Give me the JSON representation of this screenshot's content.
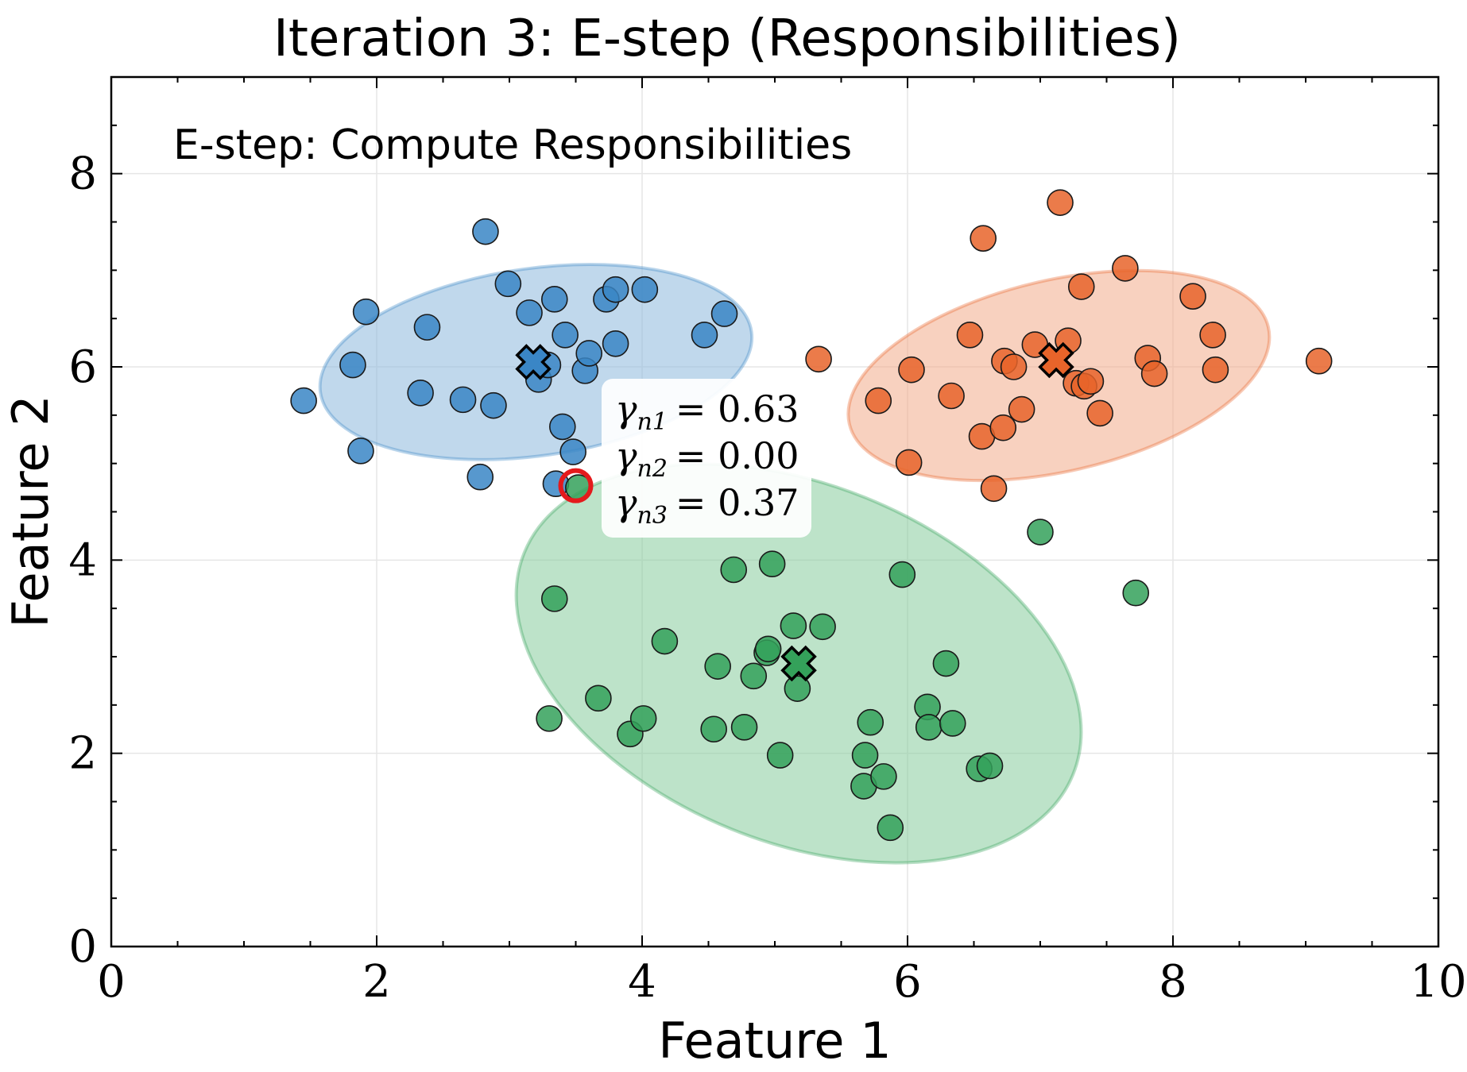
{
  "chart_data": {
    "type": "scatter",
    "title": "Iteration 3: E-step (Responsibilities)",
    "xlabel": "Feature 1",
    "ylabel": "Feature 2",
    "xlim": [
      0,
      10
    ],
    "ylim": [
      0,
      9
    ],
    "xticks": [
      0,
      2,
      4,
      6,
      8,
      10
    ],
    "yticks": [
      0,
      2,
      4,
      6,
      8
    ],
    "xtick_labels": [
      "0",
      "2",
      "4",
      "6",
      "8",
      "10"
    ],
    "ytick_labels": [
      "0",
      "2",
      "4",
      "6",
      "8"
    ],
    "grid": true,
    "annotation": "E-step: Compute Responsibilities",
    "highlighted_point": {
      "x": 3.5,
      "y": 4.77
    },
    "responsibility_labels": [
      {
        "symbol": "γ",
        "sub": "n1",
        "text": "= 0.63"
      },
      {
        "symbol": "γ",
        "sub": "n2",
        "text": "= 0.00"
      },
      {
        "symbol": "γ",
        "sub": "n3",
        "text": "= 0.37"
      }
    ],
    "clusters": [
      {
        "name": "Cluster 1",
        "color": "#3a86c6",
        "fill": "#8db8dd",
        "mean": [
          3.18,
          6.05
        ],
        "ellipse": {
          "cx": 3.2,
          "cy": 6.05,
          "rx": 1.64,
          "ry": 0.97,
          "angle_deg": 8
        },
        "points": [
          [
            1.45,
            5.65
          ],
          [
            1.82,
            6.02
          ],
          [
            1.88,
            5.13
          ],
          [
            1.92,
            6.57
          ],
          [
            2.33,
            5.73
          ],
          [
            2.38,
            6.41
          ],
          [
            2.65,
            5.66
          ],
          [
            2.78,
            4.86
          ],
          [
            2.82,
            7.4
          ],
          [
            2.88,
            5.6
          ],
          [
            2.99,
            6.86
          ],
          [
            3.15,
            6.56
          ],
          [
            3.22,
            5.87
          ],
          [
            3.29,
            6.02
          ],
          [
            3.34,
            6.7
          ],
          [
            3.35,
            4.79
          ],
          [
            3.4,
            5.38
          ],
          [
            3.42,
            6.33
          ],
          [
            3.48,
            5.12
          ],
          [
            3.57,
            5.96
          ],
          [
            3.6,
            6.14
          ],
          [
            3.73,
            6.7
          ],
          [
            3.8,
            6.8
          ],
          [
            3.8,
            6.24
          ],
          [
            4.02,
            6.8
          ],
          [
            4.47,
            6.33
          ],
          [
            4.62,
            6.55
          ]
        ]
      },
      {
        "name": "Cluster 2",
        "color": "#e8642a",
        "fill": "#f3ac8a",
        "mean": [
          7.12,
          6.07
        ],
        "ellipse": {
          "cx": 7.14,
          "cy": 5.91,
          "rx": 1.62,
          "ry": 0.99,
          "angle_deg": 13
        },
        "points": [
          [
            5.33,
            6.08
          ],
          [
            5.78,
            5.65
          ],
          [
            6.01,
            5.01
          ],
          [
            6.03,
            5.97
          ],
          [
            6.33,
            5.7
          ],
          [
            6.47,
            6.33
          ],
          [
            6.56,
            5.28
          ],
          [
            6.57,
            7.33
          ],
          [
            6.65,
            4.74
          ],
          [
            6.72,
            5.37
          ],
          [
            6.73,
            6.06
          ],
          [
            6.8,
            6.0
          ],
          [
            6.86,
            5.56
          ],
          [
            6.96,
            6.23
          ],
          [
            7.15,
            7.7
          ],
          [
            7.21,
            6.27
          ],
          [
            7.27,
            5.83
          ],
          [
            7.31,
            6.83
          ],
          [
            7.33,
            5.8
          ],
          [
            7.38,
            5.85
          ],
          [
            7.45,
            5.52
          ],
          [
            7.64,
            7.02
          ],
          [
            7.81,
            6.09
          ],
          [
            7.86,
            5.93
          ],
          [
            8.15,
            6.73
          ],
          [
            8.3,
            6.33
          ],
          [
            8.32,
            5.97
          ],
          [
            9.1,
            6.06
          ]
        ]
      },
      {
        "name": "Cluster 3",
        "color": "#34a15a",
        "fill": "#87cc9c",
        "mean": [
          5.18,
          2.93
        ],
        "ellipse": {
          "cx": 5.18,
          "cy": 2.93,
          "rx": 2.23,
          "ry": 1.85,
          "angle_deg": -22
        },
        "points": [
          [
            3.3,
            2.36
          ],
          [
            3.34,
            3.6
          ],
          [
            3.52,
            4.75
          ],
          [
            3.67,
            2.57
          ],
          [
            3.91,
            2.2
          ],
          [
            4.01,
            2.36
          ],
          [
            4.17,
            3.16
          ],
          [
            4.54,
            2.25
          ],
          [
            4.57,
            2.9
          ],
          [
            4.69,
            3.9
          ],
          [
            4.77,
            2.27
          ],
          [
            4.84,
            2.8
          ],
          [
            4.94,
            3.04
          ],
          [
            4.95,
            3.08
          ],
          [
            4.98,
            3.96
          ],
          [
            5.04,
            1.98
          ],
          [
            5.14,
            3.32
          ],
          [
            5.17,
            2.67
          ],
          [
            5.36,
            3.31
          ],
          [
            5.67,
            1.66
          ],
          [
            5.68,
            1.98
          ],
          [
            5.72,
            2.32
          ],
          [
            5.82,
            1.76
          ],
          [
            5.87,
            1.23
          ],
          [
            5.96,
            3.85
          ],
          [
            6.15,
            2.48
          ],
          [
            6.16,
            2.27
          ],
          [
            6.29,
            2.93
          ],
          [
            6.34,
            2.31
          ],
          [
            6.54,
            1.84
          ],
          [
            6.62,
            1.87
          ],
          [
            7.0,
            4.29
          ],
          [
            7.72,
            3.66
          ]
        ]
      }
    ]
  }
}
